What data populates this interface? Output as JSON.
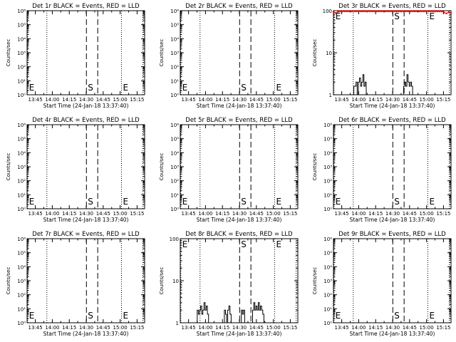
{
  "common": {
    "xlabel": "Start Time (24-Jan-18 13:37:40)",
    "ylabel": "Counts/sec",
    "x_ticks": [
      "13:45",
      "14:00",
      "14:15",
      "14:30",
      "14:45",
      "15:00",
      "15:15"
    ],
    "x_tick_minutes": [
      7.33,
      22.33,
      37.33,
      52.33,
      67.33,
      82.33,
      97.33
    ],
    "x_range_minutes": [
      0,
      104
    ],
    "dotted_lines_minutes": [
      0.5,
      17.5,
      83.5,
      102.5
    ],
    "dashed_lines_minutes": [
      52.5,
      62.5
    ],
    "markers": [
      {
        "label": "E",
        "minute": 0.5
      },
      {
        "label": "S",
        "minute": 52.5
      },
      {
        "label": "E",
        "minute": 83.5
      }
    ],
    "colors": {
      "events": "#000000",
      "lld": "#ff0000"
    }
  },
  "chart_data": [
    {
      "type": "line",
      "title": "Det 1r BLACK = Events, RED = LLD",
      "yscale": "log",
      "ylim": [
        1,
        1000000
      ],
      "y_ticks": [
        "10⁰",
        "10¹",
        "10²",
        "10³",
        "10⁴",
        "10⁵",
        "10⁶"
      ],
      "series": []
    },
    {
      "type": "line",
      "title": "Det 2r BLACK = Events, RED = LLD",
      "yscale": "log",
      "ylim": [
        1,
        1000000
      ],
      "y_ticks": [
        "10⁰",
        "10¹",
        "10²",
        "10³",
        "10⁴",
        "10⁵",
        "10⁶"
      ],
      "series": []
    },
    {
      "type": "line",
      "title": "Det 3r BLACK = Events, RED = LLD",
      "yscale": "log",
      "ylim": [
        1,
        100
      ],
      "y_ticks": [
        "1",
        "10",
        "100"
      ],
      "series": [
        {
          "color": "#ff0000",
          "style": "dots",
          "x": [
            0,
            2,
            4,
            6,
            8,
            10,
            12,
            14,
            16,
            18,
            20,
            22,
            24,
            26,
            28,
            30,
            32,
            34,
            36,
            38,
            40,
            42,
            44,
            46,
            48,
            50,
            52,
            54,
            56,
            58,
            60,
            62,
            64,
            66,
            68,
            70,
            72,
            74,
            76,
            78,
            80,
            82,
            84,
            86,
            88,
            90,
            92,
            94,
            96,
            98,
            100,
            102,
            104
          ],
          "y": [
            92,
            88,
            94,
            100,
            100,
            100,
            100,
            100,
            100,
            100,
            100,
            100,
            100,
            100,
            100,
            100,
            100,
            100,
            100,
            100,
            100,
            100,
            100,
            100,
            100,
            100,
            100,
            100,
            100,
            100,
            100,
            100,
            100,
            100,
            100,
            100,
            100,
            100,
            100,
            100,
            100,
            100,
            100,
            100,
            100,
            100,
            100,
            100,
            96,
            90,
            86,
            92,
            88
          ]
        },
        {
          "color": "#000000",
          "style": "step",
          "x": [
            17,
            18,
            19,
            20,
            21,
            22,
            23,
            24,
            25,
            26,
            27,
            28,
            29,
            30,
            61,
            62,
            63,
            64,
            65,
            66,
            67,
            68,
            69,
            70
          ],
          "y": [
            1,
            1.6,
            1.6,
            2,
            1,
            2,
            2.5,
            1.6,
            2,
            3,
            1.6,
            2,
            1,
            1,
            1,
            1.6,
            2,
            1.6,
            3,
            2,
            1.6,
            2,
            1.6,
            1
          ]
        }
      ]
    },
    {
      "type": "line",
      "title": "Det 4r BLACK = Events, RED = LLD",
      "yscale": "log",
      "ylim": [
        1,
        1000000
      ],
      "y_ticks": [
        "10⁰",
        "10¹",
        "10²",
        "10³",
        "10⁴",
        "10⁵",
        "10⁶"
      ],
      "series": []
    },
    {
      "type": "line",
      "title": "Det 5r BLACK = Events, RED = LLD",
      "yscale": "log",
      "ylim": [
        1,
        1000000
      ],
      "y_ticks": [
        "10⁰",
        "10¹",
        "10²",
        "10³",
        "10⁴",
        "10⁵",
        "10⁶"
      ],
      "series": []
    },
    {
      "type": "line",
      "title": "Det 6r BLACK = Events, RED = LLD",
      "yscale": "log",
      "ylim": [
        1,
        1000000
      ],
      "y_ticks": [
        "10⁰",
        "10¹",
        "10²",
        "10³",
        "10⁴",
        "10⁵",
        "10⁶"
      ],
      "series": []
    },
    {
      "type": "line",
      "title": "Det 7r BLACK = Events, RED = LLD",
      "yscale": "log",
      "ylim": [
        1,
        1000000
      ],
      "y_ticks": [
        "10⁰",
        "10¹",
        "10²",
        "10³",
        "10⁴",
        "10⁵",
        "10⁶"
      ],
      "series": []
    },
    {
      "type": "line",
      "title": "Det 8r BLACK = Events, RED = LLD",
      "yscale": "log",
      "ylim": [
        1,
        100
      ],
      "y_ticks": [
        "1",
        "10",
        "100"
      ],
      "series": [
        {
          "color": "#000000",
          "style": "step",
          "x": [
            14,
            15,
            16,
            17,
            18,
            19,
            20,
            21,
            22,
            23,
            24,
            25,
            38,
            39,
            40,
            41,
            42,
            43,
            44,
            45,
            53,
            54,
            55,
            56,
            57,
            63,
            64,
            65,
            66,
            67,
            68,
            69,
            70,
            71,
            72,
            73,
            74
          ],
          "y": [
            1,
            2,
            1.6,
            2,
            2.5,
            1.6,
            2,
            3,
            2,
            2.5,
            1.6,
            1,
            1,
            2,
            1.6,
            1,
            2,
            2.5,
            1.6,
            1,
            1,
            2,
            1.6,
            2,
            1,
            1,
            2,
            3,
            2,
            2.5,
            2,
            3,
            2,
            2.5,
            2,
            1.6,
            1
          ]
        }
      ]
    },
    {
      "type": "line",
      "title": "Det 9r BLACK = Events, RED = LLD",
      "yscale": "log",
      "ylim": [
        1,
        1000000
      ],
      "y_ticks": [
        "10⁰",
        "10¹",
        "10²",
        "10³",
        "10⁴",
        "10⁵",
        "10⁶"
      ],
      "series": []
    }
  ]
}
